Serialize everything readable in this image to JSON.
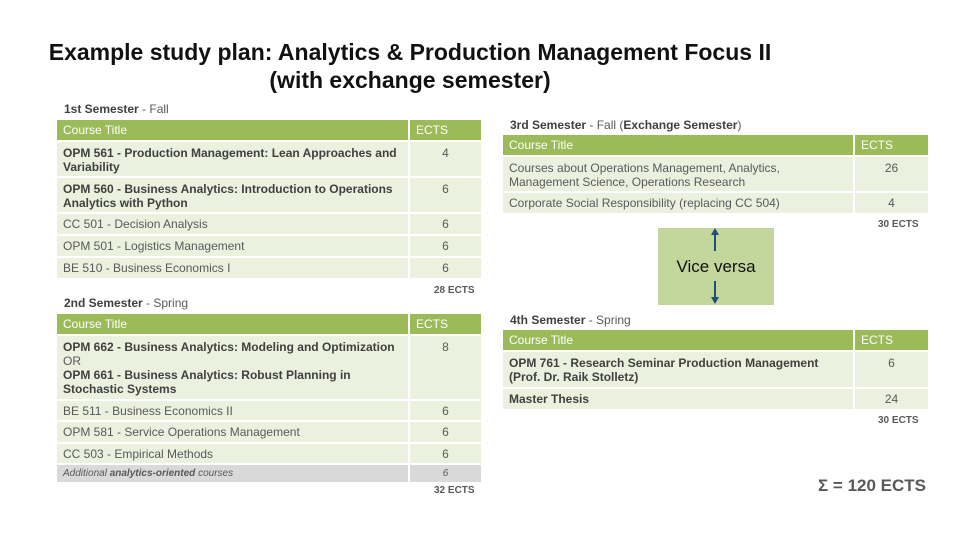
{
  "title": {
    "line1": "Example study plan: Analytics & Production Management Focus II",
    "line2": "(with exchange semester)"
  },
  "header": {
    "course_title": "Course Title",
    "ects": "ECTS"
  },
  "sem1": {
    "label_bold": "1st Semester",
    "label_rest": " - Fall",
    "rows": [
      {
        "code": "OPM 561 - Production Management: Lean Approaches and Variability",
        "ects": "4"
      },
      {
        "code": "OPM 560 - Business Analytics: Introduction to Operations Analytics with Python",
        "ects": "6"
      },
      {
        "code": "CC 501 - Decision Analysis",
        "ects": "6"
      },
      {
        "code": "OPM 501 - Logistics Management",
        "ects": "6"
      },
      {
        "code": "BE 510 - Business Economics I",
        "ects": "6"
      }
    ],
    "total": "28 ECTS"
  },
  "sem2": {
    "label_bold": "2nd Semester",
    "label_rest": " - Spring",
    "rows": [
      {
        "code_a": "OPM 662 - Business Analytics: Modeling and Optimization",
        "or": "OR",
        "code_b": "OPM 661 - Business Analytics: Robust Planning in Stochastic Systems",
        "ects": "8"
      },
      {
        "code": "BE 511 - Business Economics II",
        "ects": "6"
      },
      {
        "code": "OPM 581 - Service Operations Management",
        "ects": "6"
      },
      {
        "code": "CC 503 - Empirical Methods",
        "ects": "6"
      },
      {
        "pre": "Additional ",
        "bold": "analytics-oriented",
        "post": " courses",
        "ects": "6"
      }
    ],
    "total": "32 ECTS"
  },
  "sem3": {
    "label_bold": "3rd Semester",
    "label_mid": " - Fall (",
    "label_bold2": "Exchange Semester",
    "label_end": ")",
    "rows": [
      {
        "code": "Courses about Operations Management, Analytics, Management Science, Operations Research",
        "ects": "26"
      },
      {
        "code": "Corporate Social Responsibility (replacing CC 504)",
        "ects": "4"
      }
    ],
    "total": "30 ECTS"
  },
  "sem4": {
    "label_bold": "4th Semester",
    "label_rest": " - Spring",
    "rows": [
      {
        "code": "OPM 761 - Research Seminar Production Management (Prof. Dr. Raik Stolletz)",
        "ects": "6"
      },
      {
        "code": "Master Thesis",
        "ects": "24"
      }
    ],
    "total": "30 ECTS"
  },
  "vice_versa": "Vice versa",
  "sum": "Σ = 120 ECTS",
  "colors": {
    "header_green": "#9bbb59",
    "row_light": "#ebf1de",
    "box_green": "#c3d69b",
    "arrow": "#1f4e79",
    "gray_row": "#d9d9d9"
  }
}
